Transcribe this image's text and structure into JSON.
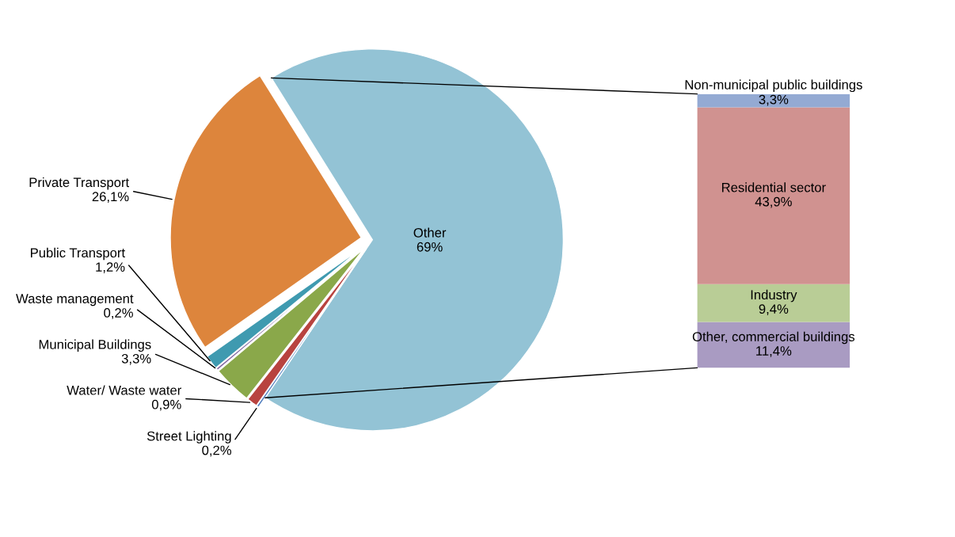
{
  "chart_data": [
    {
      "type": "pie",
      "categories": [
        "Other",
        "Street Lighting",
        "Water/ Waste water",
        "Municipal Buildings",
        "Waste management",
        "Public Transport",
        "Private Transport"
      ],
      "values": [
        69,
        0.2,
        0.9,
        3.3,
        0.2,
        1.2,
        26.1
      ],
      "value_labels": [
        "69%",
        "0,2%",
        "0,9%",
        "3,3%",
        "0,2%",
        "1,2%",
        "26,1%"
      ],
      "colors": [
        "#93c3d5",
        "#4f7dbf",
        "#b8433f",
        "#8aa84a",
        "#7f63a0",
        "#3f9ab0",
        "#dd853c"
      ]
    },
    {
      "type": "bar",
      "stacked": true,
      "categories": [
        null
      ],
      "series": [
        {
          "name": "Other, commercial buildings",
          "color": "#a99bc2",
          "values": [
            11.4
          ],
          "value_labels": [
            "11,4%"
          ]
        },
        {
          "name": "Industry",
          "color": "#b9cd96",
          "values": [
            9.4
          ],
          "value_labels": [
            "9,4%"
          ]
        },
        {
          "name": "Residential sector",
          "color": "#d09290",
          "values": [
            43.9
          ],
          "value_labels": [
            "43,9%"
          ]
        },
        {
          "name": "Non-municipal public buildings",
          "color": "#94aad3",
          "values": [
            3.3
          ],
          "value_labels": [
            "3,3%"
          ]
        }
      ]
    }
  ]
}
